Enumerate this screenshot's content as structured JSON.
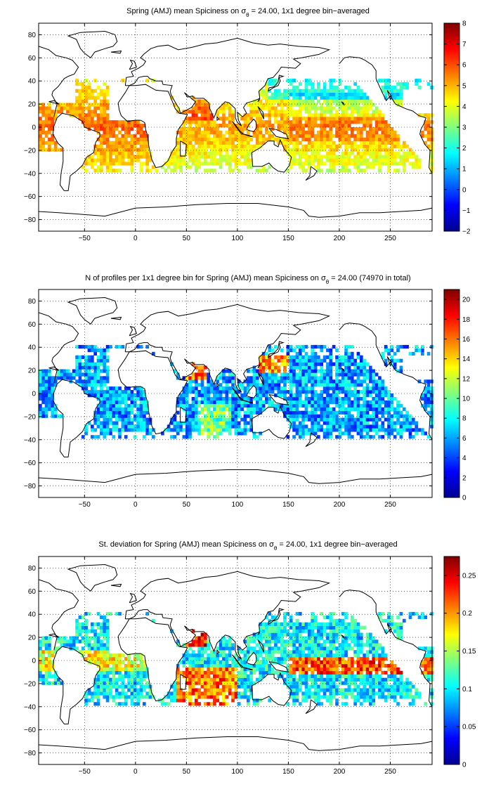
{
  "colors": {
    "frame": "#000000",
    "grid": "#000000",
    "coast": "#000000",
    "colormap": "jet"
  },
  "chart_data": [
    {
      "type": "heatmap",
      "title_main": "Spring (AMJ) mean Spiciness on σ",
      "title_sub": "θ",
      "title_tail": " = 24.00, 1x1 degree bin−averaged",
      "xticks": [
        "−50",
        "0",
        "50",
        "100",
        "150",
        "200",
        "250"
      ],
      "xtick_values": [
        -50,
        0,
        50,
        100,
        150,
        200,
        250
      ],
      "yticks": [
        "80",
        "60",
        "40",
        "20",
        "0",
        "−20",
        "−40",
        "−60",
        "−80"
      ],
      "ytick_values": [
        80,
        60,
        40,
        20,
        0,
        -20,
        -40,
        -60,
        -80
      ],
      "xlim": [
        -95,
        291
      ],
      "ylim": [
        -90,
        90
      ],
      "grid": true,
      "colorbar": {
        "range": [
          -2,
          8
        ],
        "ticks": [
          "8",
          "7",
          "6",
          "5",
          "4",
          "3",
          "2",
          "1",
          "0",
          "−1",
          "−2"
        ],
        "tick_values": [
          8,
          7,
          6,
          5,
          4,
          3,
          2,
          1,
          0,
          -1,
          -2
        ]
      }
    },
    {
      "type": "heatmap",
      "title_main": "N of profiles per 1x1 degree bin for Spring (AMJ) mean Spiciness on σ",
      "title_sub": "θ",
      "title_tail": " = 24.00 (74970 in total)",
      "xticks": [
        "−50",
        "0",
        "50",
        "100",
        "150",
        "200",
        "250"
      ],
      "xtick_values": [
        -50,
        0,
        50,
        100,
        150,
        200,
        250
      ],
      "yticks": [
        "80",
        "60",
        "40",
        "20",
        "0",
        "−20",
        "−40",
        "−60",
        "−80"
      ],
      "ytick_values": [
        80,
        60,
        40,
        20,
        0,
        -20,
        -40,
        -60,
        -80
      ],
      "xlim": [
        -95,
        291
      ],
      "ylim": [
        -90,
        90
      ],
      "grid": true,
      "colorbar": {
        "range": [
          0,
          21
        ],
        "ticks": [
          "20",
          "18",
          "16",
          "14",
          "12",
          "10",
          "8",
          "6",
          "4",
          "2",
          "0"
        ],
        "tick_values": [
          20,
          18,
          16,
          14,
          12,
          10,
          8,
          6,
          4,
          2,
          0
        ]
      }
    },
    {
      "type": "heatmap",
      "title_main": "St. deviation for Spring (AMJ) mean Spiciness on σ",
      "title_sub": "θ",
      "title_tail": " = 24.00, 1x1 degree bin−averaged",
      "xticks": [
        "−50",
        "0",
        "50",
        "100",
        "150",
        "200",
        "250"
      ],
      "xtick_values": [
        -50,
        0,
        50,
        100,
        150,
        200,
        250
      ],
      "yticks": [
        "80",
        "60",
        "40",
        "20",
        "0",
        "−20",
        "−40",
        "−60",
        "−80"
      ],
      "ytick_values": [
        80,
        60,
        40,
        20,
        0,
        -20,
        -40,
        -60,
        -80
      ],
      "xlim": [
        -95,
        291
      ],
      "ylim": [
        -90,
        90
      ],
      "grid": true,
      "colorbar": {
        "range": [
          0,
          0.275
        ],
        "ticks": [
          "0.25",
          "0.2",
          "0.15",
          "0.1",
          "0.05",
          "0"
        ],
        "tick_values": [
          0.25,
          0.2,
          0.15,
          0.1,
          0.05,
          0
        ]
      }
    }
  ]
}
